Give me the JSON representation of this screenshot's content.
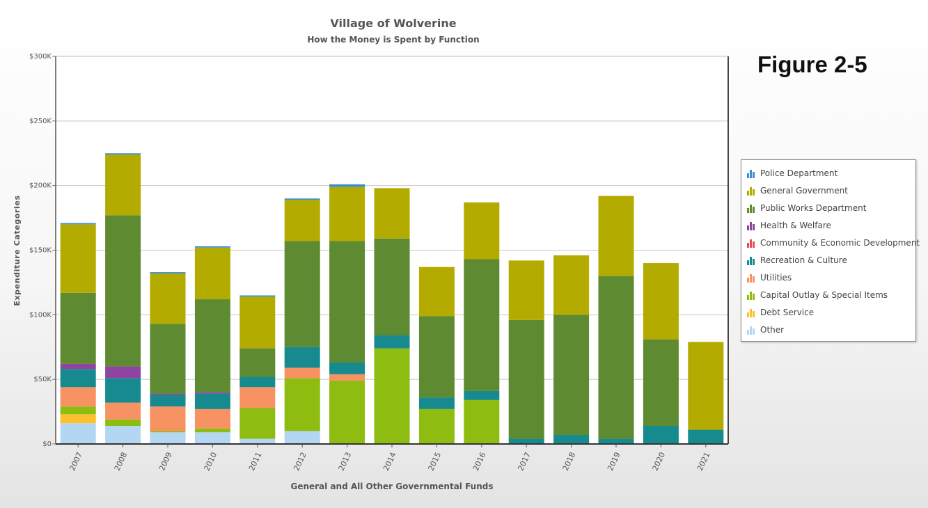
{
  "figure_label": "Figure 2-5",
  "chart_data": {
    "type": "bar",
    "stacked": true,
    "title": "Village of Wolverine",
    "subtitle": "How the Money is Spent by Function",
    "xlabel": "General and All Other Governmental Funds",
    "ylabel": "Expenditure Categories",
    "ylim": [
      0,
      300000
    ],
    "yticks": [
      0,
      50000,
      100000,
      150000,
      200000,
      250000,
      300000
    ],
    "ytick_labels": [
      "$0",
      "$50K",
      "$100K",
      "$150K",
      "$200K",
      "$250K",
      "$300K"
    ],
    "grid": true,
    "legend_position": "right",
    "categories": [
      "2007",
      "2008",
      "2009",
      "2010",
      "2011",
      "2012",
      "2013",
      "2014",
      "2015",
      "2016",
      "2017",
      "2018",
      "2019",
      "2020",
      "2021"
    ],
    "series": [
      {
        "name": "Other",
        "color": "#b3d7f2",
        "values": [
          16000,
          14000,
          9000,
          9000,
          4000,
          10000,
          0,
          0,
          0,
          0,
          0,
          0,
          0,
          0,
          0
        ]
      },
      {
        "name": "Debt Service",
        "color": "#fbc02d",
        "values": [
          7000,
          0,
          0,
          0,
          0,
          0,
          0,
          0,
          0,
          0,
          0,
          0,
          0,
          0,
          0
        ]
      },
      {
        "name": "Capital Outlay & Special Items",
        "color": "#8fbc10",
        "values": [
          6000,
          5000,
          1000,
          3000,
          24000,
          41000,
          49000,
          74000,
          27000,
          34000,
          0,
          0,
          0,
          0,
          0
        ]
      },
      {
        "name": "Utilities",
        "color": "#f79262",
        "values": [
          15000,
          13000,
          19000,
          15000,
          16000,
          8000,
          5000,
          0,
          0,
          0,
          0,
          0,
          0,
          0,
          0
        ]
      },
      {
        "name": "Community & Economic Development",
        "color": "#e74c5c",
        "values": [
          0,
          0,
          0,
          0,
          0,
          0,
          0,
          0,
          0,
          0,
          0,
          0,
          0,
          0,
          0
        ]
      },
      {
        "name": "Recreation & Culture",
        "color": "#168a8e",
        "values": [
          14000,
          19000,
          9000,
          12000,
          8000,
          16000,
          9000,
          10000,
          9000,
          7000,
          4000,
          7000,
          4000,
          14000,
          11000
        ]
      },
      {
        "name": "Health & Welfare",
        "color": "#8e44a0",
        "values": [
          4000,
          9000,
          1000,
          1000,
          0,
          0,
          0,
          0,
          0,
          0,
          0,
          0,
          0,
          0,
          0
        ]
      },
      {
        "name": "Public Works Department",
        "color": "#5e8a31",
        "values": [
          55000,
          117000,
          54000,
          72000,
          22000,
          82000,
          94000,
          75000,
          63000,
          102000,
          92000,
          93000,
          126000,
          67000,
          0
        ]
      },
      {
        "name": "General Government",
        "color": "#b4ab00",
        "values": [
          53000,
          47000,
          39000,
          40000,
          40000,
          32000,
          42000,
          39000,
          38000,
          44000,
          46000,
          46000,
          62000,
          59000,
          68000
        ]
      },
      {
        "name": "Police Department",
        "color": "#3d8fd1",
        "values": [
          1000,
          1000,
          1000,
          1000,
          1000,
          1000,
          2000,
          0,
          0,
          0,
          0,
          0,
          0,
          0,
          0
        ]
      }
    ],
    "legend_order": [
      "Police Department",
      "General Government",
      "Public Works Department",
      "Health & Welfare",
      "Community & Economic Development",
      "Recreation & Culture",
      "Utilities",
      "Capital Outlay & Special Items",
      "Debt Service",
      "Other"
    ]
  }
}
